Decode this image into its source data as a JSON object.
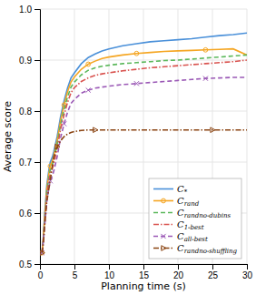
{
  "chart_data": {
    "type": "line",
    "xlabel": "Planning time (s)",
    "ylabel": "Average score",
    "xlim": [
      0,
      30
    ],
    "ylim": [
      0.5,
      1.0
    ],
    "xticks": [
      0,
      5,
      10,
      15,
      20,
      25,
      30
    ],
    "yticks": [
      0.5,
      0.6,
      0.7,
      0.8,
      0.9,
      {
        "value": 1.0,
        "label": "1.0"
      }
    ],
    "grid": true,
    "legend": "lower right",
    "series": [
      {
        "name": "C*",
        "color": "#4a90d9",
        "line_style": "solid",
        "x": [
          0.3,
          0.5,
          0.7,
          1.0,
          1.3,
          1.5,
          1.8,
          2.0,
          2.5,
          3.0,
          3.5,
          4.0,
          4.5,
          5.0,
          6,
          7,
          8,
          9,
          10,
          12,
          14,
          16,
          18,
          20,
          22,
          24,
          26,
          28,
          30
        ],
        "values": [
          0.522,
          0.555,
          0.6,
          0.655,
          0.685,
          0.7,
          0.71,
          0.72,
          0.75,
          0.79,
          0.82,
          0.845,
          0.865,
          0.875,
          0.893,
          0.905,
          0.912,
          0.918,
          0.922,
          0.928,
          0.932,
          0.936,
          0.938,
          0.94,
          0.942,
          0.945,
          0.948,
          0.95,
          0.953
        ]
      },
      {
        "name": "Crand",
        "color": "#f5a623",
        "line_style": "solid",
        "marker": "circle",
        "x": [
          0.3,
          0.5,
          0.7,
          1.0,
          1.3,
          1.5,
          1.8,
          2.0,
          2.5,
          3.0,
          3.5,
          4.0,
          4.5,
          5.0,
          6,
          7,
          8,
          9,
          10,
          12,
          14,
          16,
          18,
          20,
          22,
          24,
          26,
          28,
          30
        ],
        "values": [
          0.522,
          0.552,
          0.595,
          0.648,
          0.678,
          0.692,
          0.702,
          0.712,
          0.742,
          0.782,
          0.812,
          0.838,
          0.857,
          0.867,
          0.882,
          0.892,
          0.898,
          0.903,
          0.906,
          0.91,
          0.913,
          0.915,
          0.917,
          0.918,
          0.919,
          0.92,
          0.921,
          0.922,
          0.91
        ]
      },
      {
        "name": "Crandno-dubins",
        "color": "#5cb85c",
        "line_style": "dashed",
        "x": [
          0.3,
          0.5,
          0.7,
          1.0,
          1.3,
          1.5,
          1.8,
          2.0,
          2.5,
          3.0,
          3.5,
          4.0,
          4.5,
          5.0,
          6,
          7,
          8,
          9,
          10,
          12,
          14,
          16,
          18,
          20,
          22,
          24,
          26,
          28,
          30
        ],
        "values": [
          0.522,
          0.55,
          0.59,
          0.642,
          0.67,
          0.685,
          0.695,
          0.705,
          0.735,
          0.774,
          0.803,
          0.828,
          0.847,
          0.857,
          0.871,
          0.88,
          0.885,
          0.888,
          0.89,
          0.893,
          0.895,
          0.897,
          0.899,
          0.9,
          0.902,
          0.904,
          0.906,
          0.908,
          0.91
        ]
      },
      {
        "name": "C1-best",
        "color": "#d9534f",
        "line_style": "dashdot",
        "x": [
          0.3,
          0.5,
          0.7,
          1.0,
          1.3,
          1.5,
          1.8,
          2.0,
          2.5,
          3.0,
          3.5,
          4.0,
          4.5,
          5.0,
          6,
          7,
          8,
          9,
          10,
          12,
          14,
          16,
          18,
          20,
          22,
          24,
          26,
          28,
          30
        ],
        "values": [
          0.522,
          0.548,
          0.585,
          0.635,
          0.663,
          0.677,
          0.688,
          0.697,
          0.727,
          0.765,
          0.793,
          0.817,
          0.836,
          0.846,
          0.858,
          0.865,
          0.87,
          0.873,
          0.875,
          0.879,
          0.882,
          0.885,
          0.887,
          0.889,
          0.891,
          0.893,
          0.895,
          0.897,
          0.9
        ]
      },
      {
        "name": "Call-best",
        "color": "#9b59b6",
        "line_style": "dashed",
        "marker": "x",
        "x": [
          0.3,
          0.5,
          0.7,
          1.0,
          1.3,
          1.5,
          1.8,
          2.0,
          2.5,
          3.0,
          3.5,
          4.0,
          4.5,
          5.0,
          6,
          7,
          8,
          9,
          10,
          12,
          14,
          16,
          18,
          20,
          22,
          24,
          26,
          28,
          30
        ],
        "values": [
          0.522,
          0.545,
          0.578,
          0.624,
          0.65,
          0.663,
          0.673,
          0.682,
          0.711,
          0.748,
          0.775,
          0.798,
          0.815,
          0.823,
          0.835,
          0.841,
          0.845,
          0.847,
          0.849,
          0.852,
          0.854,
          0.856,
          0.858,
          0.86,
          0.862,
          0.864,
          0.865,
          0.866,
          0.866
        ]
      },
      {
        "name": "Crandno-shuffling",
        "color": "#8B4513",
        "line_style": "dashdot",
        "marker": "triangle-right",
        "x": [
          0.3,
          0.5,
          0.7,
          1.0,
          1.3,
          1.5,
          1.8,
          2.0,
          2.5,
          3.0,
          3.5,
          4.0,
          4.5,
          5.0,
          6,
          7,
          8,
          9,
          10,
          12,
          15,
          18,
          20,
          22,
          25,
          28,
          30
        ],
        "values": [
          0.522,
          0.54,
          0.578,
          0.623,
          0.648,
          0.665,
          0.692,
          0.71,
          0.73,
          0.742,
          0.75,
          0.755,
          0.758,
          0.76,
          0.762,
          0.763,
          0.763,
          0.763,
          0.763,
          0.763,
          0.763,
          0.763,
          0.763,
          0.763,
          0.763,
          0.763,
          0.763
        ]
      }
    ]
  }
}
